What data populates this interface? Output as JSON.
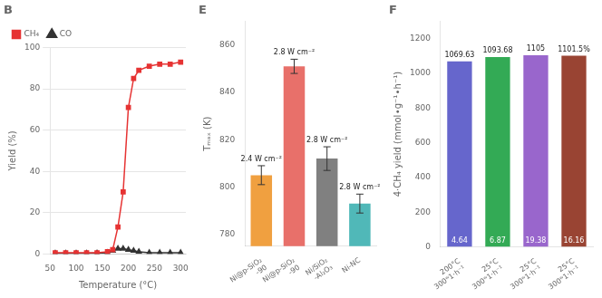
{
  "chart_data": [
    {
      "type": "line",
      "title": "B",
      "xlabel": "Temperature (°C)",
      "ylabel": "Yield (%)",
      "x": [
        60,
        80,
        100,
        120,
        140,
        160,
        170,
        180,
        190,
        200,
        210,
        220,
        240,
        260,
        280,
        300
      ],
      "series": [
        {
          "name": "CH₄",
          "color": "#e63333",
          "marker": "square",
          "values": [
            0.5,
            0.5,
            0.5,
            0.5,
            0.5,
            1,
            2,
            13,
            30,
            71,
            85,
            89,
            91,
            92,
            92,
            93
          ]
        },
        {
          "name": "CO",
          "color": "#333333",
          "marker": "triangle",
          "values": [
            0.2,
            0.2,
            0.2,
            0.2,
            0.3,
            0.5,
            1.5,
            2.5,
            2.5,
            2,
            1.5,
            1,
            0.5,
            0.5,
            0.5,
            0.5
          ]
        }
      ],
      "xlim": [
        50,
        310
      ],
      "xticks": [
        50,
        100,
        150,
        200,
        250,
        300
      ],
      "ylim": [
        0,
        100
      ],
      "yticks": [
        0,
        20,
        40,
        60,
        80,
        100
      ],
      "grid": "y",
      "legend": "upper left"
    },
    {
      "type": "bar",
      "title": "E",
      "categories": [
        "Ni@p-SiO₂\n-90",
        "Ni@p-SiO₂\n-90",
        "Ni/SiO₂\n-Al₂O₃",
        "Ni-NC"
      ],
      "values": [
        805,
        851,
        812,
        793
      ],
      "errors": [
        4,
        3,
        5,
        4
      ],
      "colors": [
        "#f0a040",
        "#e8706a",
        "#808080",
        "#50b8b8"
      ],
      "annotations": [
        "2.4 W cm⁻²",
        "2.8 W cm⁻²",
        "2.8 W cm⁻²",
        "2.8 W cm⁻²"
      ],
      "ylabel": "Tₘₐₓ (K)",
      "ylim": [
        775,
        870
      ],
      "yticks": [
        780,
        800,
        820,
        840,
        860
      ],
      "grid": false
    },
    {
      "type": "bar",
      "title": "F",
      "categories": [
        "200°C\n300ʷ1·h⁻¹",
        "25°C\n300ʷ1·h⁻¹",
        "25°C\n300ʷ1·h⁻¹",
        "25°C\n300ʷ1·h⁻¹"
      ],
      "values": [
        1069.63,
        1093.68,
        1105,
        1101.5
      ],
      "data_labels": true,
      "value_labels": [
        "1069.63",
        "1093.68",
        "1105",
        "1101.5%"
      ],
      "base_labels": [
        "4.64",
        "6.87",
        "19.38",
        "16.16"
      ],
      "colors": [
        "#6666cc",
        "#33aa55",
        "#9966cc",
        "#994433"
      ],
      "ylabel": "4·CH₄ yield (mmol∙g⁻¹∙h⁻¹)",
      "ylim": [
        0,
        1300
      ],
      "yticks": [
        0,
        200,
        400,
        600,
        800,
        1000,
        1200
      ],
      "grid": false
    }
  ]
}
